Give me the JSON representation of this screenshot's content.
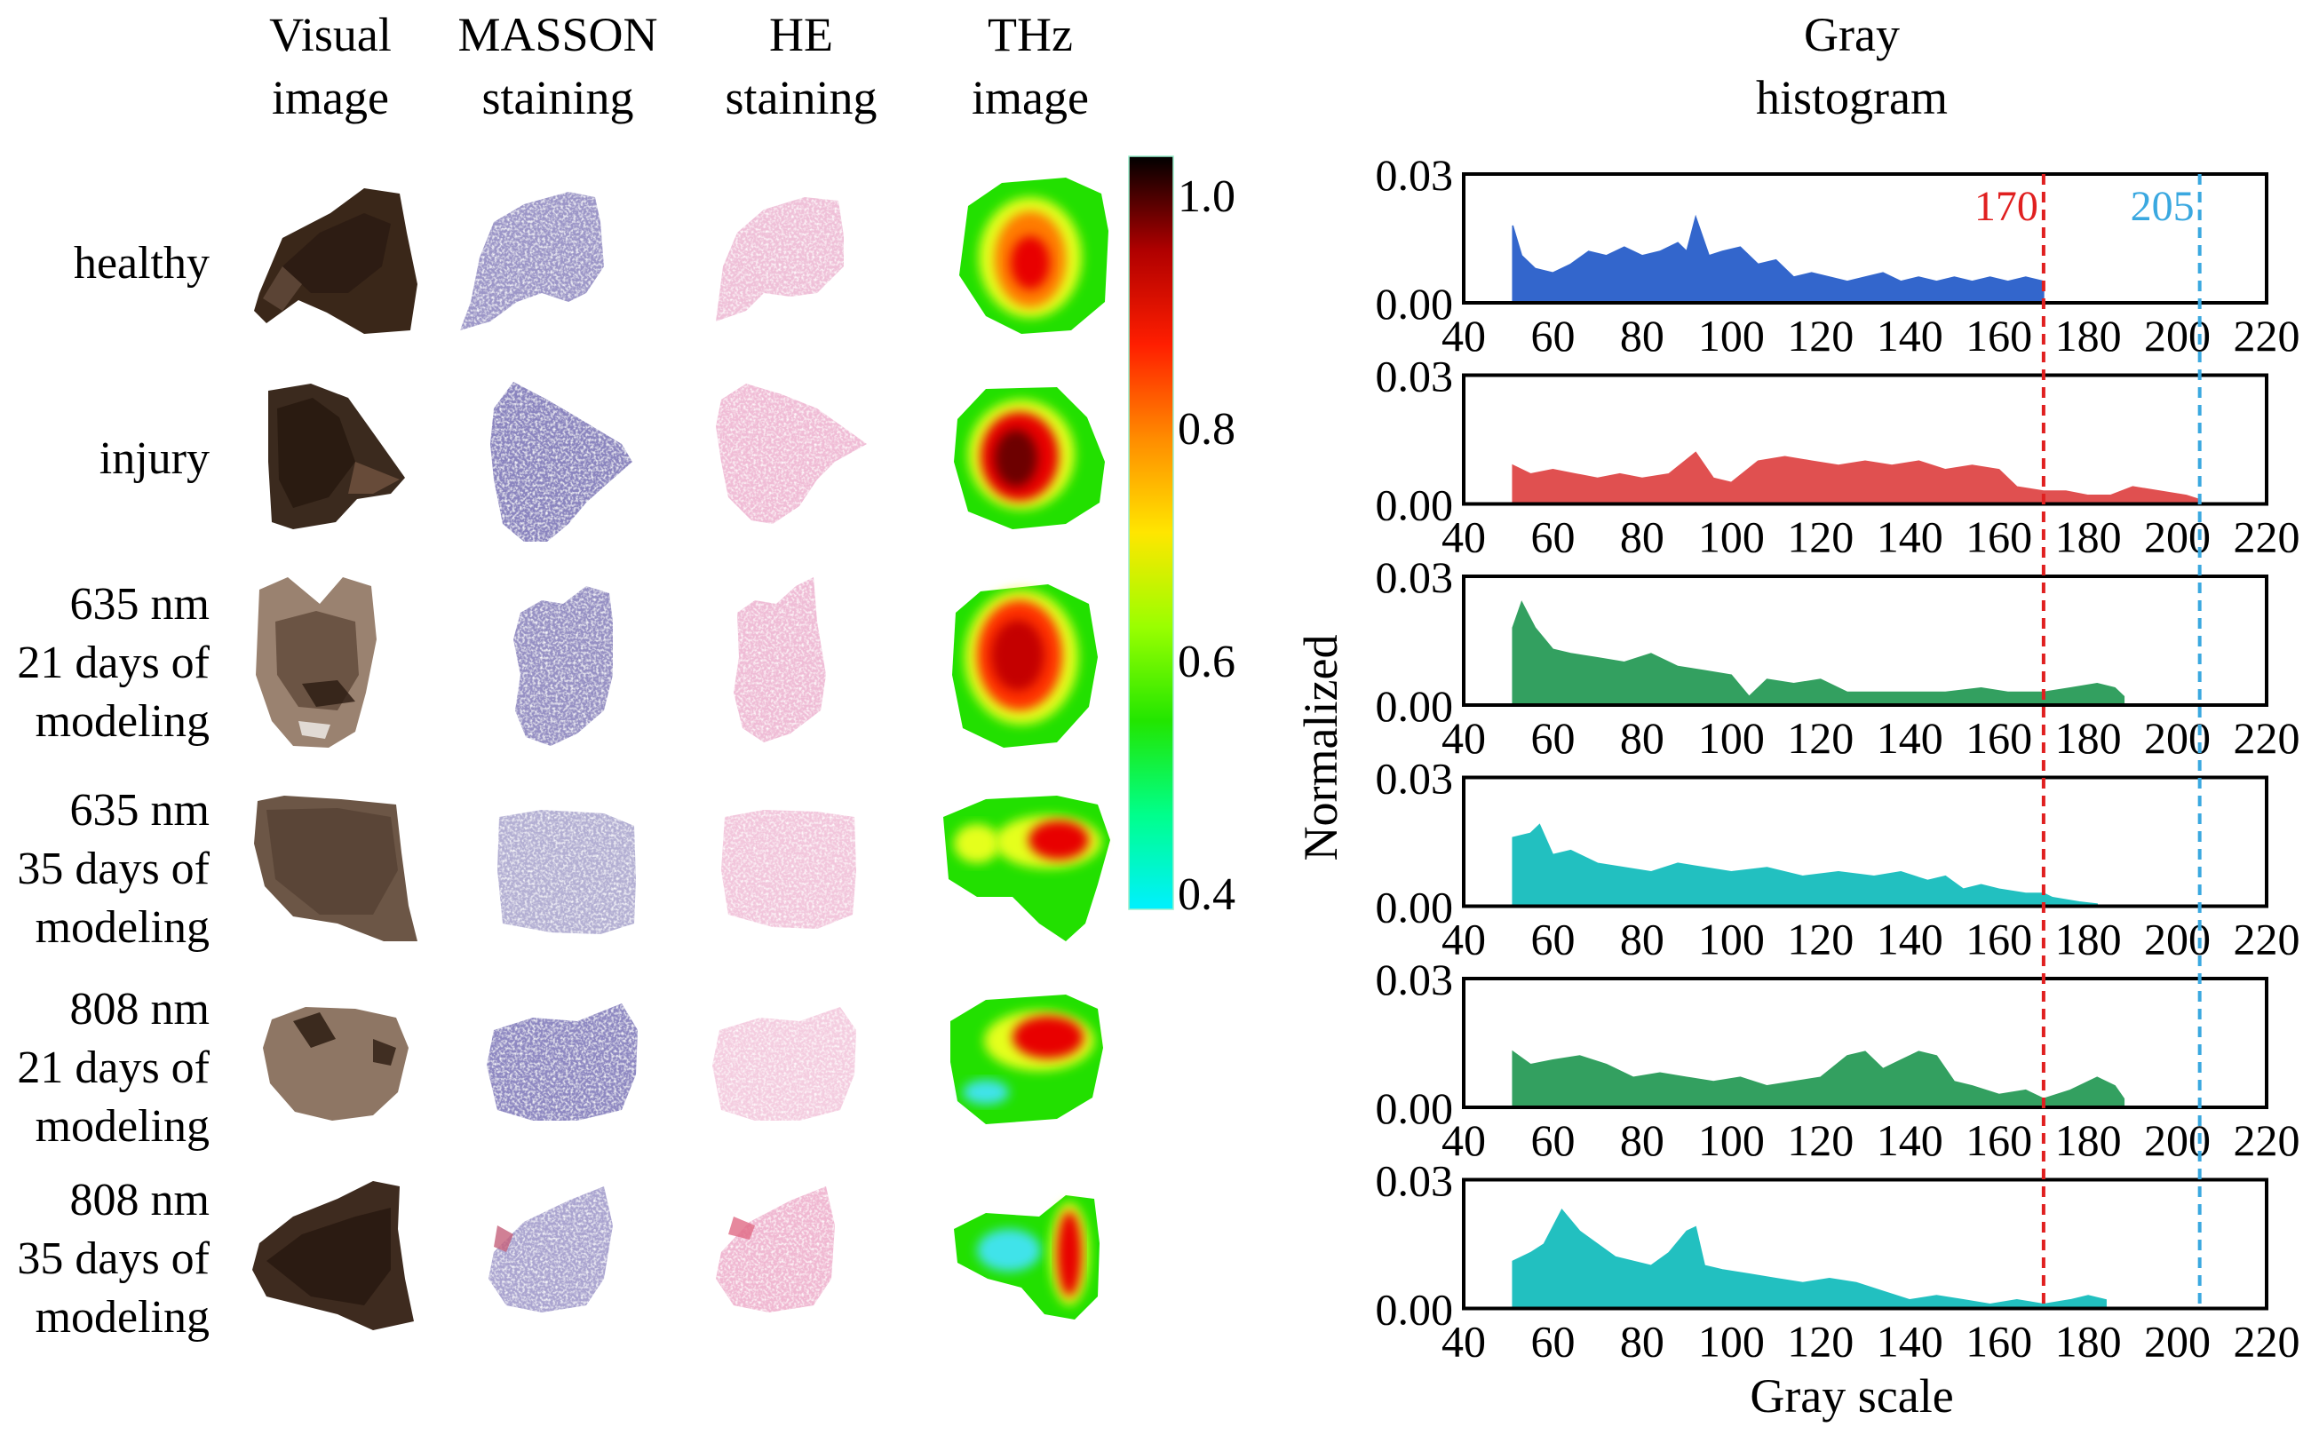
{
  "column_headers": [
    {
      "line1": "Visual",
      "line2": "image"
    },
    {
      "line1": "MASSON",
      "line2": "staining"
    },
    {
      "line1": "HE",
      "line2": "staining"
    },
    {
      "line1": "THz",
      "line2": "image"
    }
  ],
  "histogram_header": {
    "line1": "Gray",
    "line2": "histogram"
  },
  "row_labels": [
    {
      "lines": [
        "healthy"
      ]
    },
    {
      "lines": [
        "injury"
      ]
    },
    {
      "lines": [
        "635 nm",
        "21 days of",
        "modeling"
      ]
    },
    {
      "lines": [
        "635 nm",
        "35 days of",
        "modeling"
      ]
    },
    {
      "lines": [
        "808 nm",
        "21 days of",
        "modeling"
      ]
    },
    {
      "lines": [
        "808 nm",
        "35 days of",
        "modeling"
      ]
    }
  ],
  "colorbar": {
    "ticks": [
      "1.0",
      "0.8",
      "0.6",
      "0.4"
    ],
    "stops": [
      "#000000",
      "#b00000",
      "#ff1e00",
      "#ff8c00",
      "#ffe600",
      "#9aff00",
      "#22e600",
      "#00ff8c",
      "#00f0ff"
    ]
  },
  "colors": {
    "tissue_visual": "#3b2a1e",
    "masson": "#8d86c0",
    "he": "#ecb6d2",
    "thz_outer": "#22e000",
    "thz_cyan": "#3fe3ea",
    "thz_yellow": "#e5ff1f",
    "thz_red": "#e80000",
    "thz_dark": "#6d0000"
  },
  "chart_data": {
    "type": "area",
    "y_axis_title": "Normalized",
    "x_axis_title": "Gray scale",
    "xlim": [
      40,
      220
    ],
    "ylim": [
      0,
      0.03
    ],
    "x_ticks": [
      "40",
      "60",
      "80",
      "100",
      "120",
      "140",
      "160",
      "180",
      "200",
      "220"
    ],
    "y_ticks": [
      "0.00",
      "0.03"
    ],
    "reference_lines": [
      {
        "value": 170,
        "label": "170",
        "color": "#e02020"
      },
      {
        "value": 205,
        "label": "205",
        "color": "#3aa8e0"
      }
    ],
    "series": [
      {
        "name": "healthy",
        "color": "#3366cc",
        "points": [
          [
            51,
            0
          ],
          [
            51,
            0.018
          ],
          [
            53,
            0.011
          ],
          [
            56,
            0.008
          ],
          [
            60,
            0.007
          ],
          [
            64,
            0.009
          ],
          [
            68,
            0.012
          ],
          [
            72,
            0.011
          ],
          [
            76,
            0.013
          ],
          [
            80,
            0.011
          ],
          [
            84,
            0.012
          ],
          [
            88,
            0.014
          ],
          [
            90,
            0.012
          ],
          [
            92,
            0.02
          ],
          [
            95,
            0.011
          ],
          [
            98,
            0.012
          ],
          [
            102,
            0.013
          ],
          [
            106,
            0.009
          ],
          [
            110,
            0.01
          ],
          [
            114,
            0.006
          ],
          [
            118,
            0.007
          ],
          [
            122,
            0.006
          ],
          [
            126,
            0.005
          ],
          [
            130,
            0.006
          ],
          [
            134,
            0.007
          ],
          [
            138,
            0.005
          ],
          [
            142,
            0.006
          ],
          [
            146,
            0.005
          ],
          [
            150,
            0.006
          ],
          [
            154,
            0.005
          ],
          [
            158,
            0.006
          ],
          [
            162,
            0.005
          ],
          [
            166,
            0.006
          ],
          [
            170,
            0.005
          ],
          [
            170,
            0
          ]
        ]
      },
      {
        "name": "injury",
        "color": "#e05050",
        "points": [
          [
            51,
            0
          ],
          [
            51,
            0.009
          ],
          [
            55,
            0.007
          ],
          [
            60,
            0.008
          ],
          [
            65,
            0.007
          ],
          [
            70,
            0.006
          ],
          [
            75,
            0.007
          ],
          [
            80,
            0.006
          ],
          [
            86,
            0.007
          ],
          [
            92,
            0.012
          ],
          [
            96,
            0.006
          ],
          [
            100,
            0.005
          ],
          [
            106,
            0.01
          ],
          [
            112,
            0.011
          ],
          [
            118,
            0.01
          ],
          [
            124,
            0.009
          ],
          [
            130,
            0.01
          ],
          [
            136,
            0.009
          ],
          [
            142,
            0.01
          ],
          [
            148,
            0.008
          ],
          [
            154,
            0.009
          ],
          [
            160,
            0.008
          ],
          [
            164,
            0.004
          ],
          [
            170,
            0.003
          ],
          [
            175,
            0.003
          ],
          [
            180,
            0.002
          ],
          [
            185,
            0.002
          ],
          [
            190,
            0.004
          ],
          [
            196,
            0.003
          ],
          [
            202,
            0.002
          ],
          [
            205,
            0.001
          ],
          [
            205,
            0
          ]
        ]
      },
      {
        "name": "635 nm 21 days of modeling",
        "color": "#33a060",
        "points": [
          [
            51,
            0
          ],
          [
            51,
            0.018
          ],
          [
            53,
            0.024
          ],
          [
            56,
            0.018
          ],
          [
            60,
            0.013
          ],
          [
            64,
            0.012
          ],
          [
            70,
            0.011
          ],
          [
            76,
            0.01
          ],
          [
            82,
            0.012
          ],
          [
            88,
            0.009
          ],
          [
            94,
            0.008
          ],
          [
            100,
            0.007
          ],
          [
            104,
            0.002
          ],
          [
            108,
            0.006
          ],
          [
            114,
            0.005
          ],
          [
            120,
            0.006
          ],
          [
            126,
            0.003
          ],
          [
            132,
            0.003
          ],
          [
            140,
            0.003
          ],
          [
            148,
            0.003
          ],
          [
            156,
            0.004
          ],
          [
            162,
            0.003
          ],
          [
            170,
            0.003
          ],
          [
            176,
            0.004
          ],
          [
            182,
            0.005
          ],
          [
            186,
            0.004
          ],
          [
            188,
            0.002
          ],
          [
            188,
            0
          ]
        ]
      },
      {
        "name": "635 nm 35 days of modeling",
        "color": "#22c0c0",
        "points": [
          [
            51,
            0
          ],
          [
            51,
            0.016
          ],
          [
            55,
            0.017
          ],
          [
            57,
            0.019
          ],
          [
            60,
            0.012
          ],
          [
            64,
            0.013
          ],
          [
            70,
            0.01
          ],
          [
            76,
            0.009
          ],
          [
            82,
            0.008
          ],
          [
            88,
            0.01
          ],
          [
            94,
            0.009
          ],
          [
            100,
            0.008
          ],
          [
            108,
            0.009
          ],
          [
            116,
            0.007
          ],
          [
            124,
            0.008
          ],
          [
            132,
            0.007
          ],
          [
            138,
            0.008
          ],
          [
            144,
            0.006
          ],
          [
            148,
            0.007
          ],
          [
            152,
            0.004
          ],
          [
            156,
            0.005
          ],
          [
            160,
            0.004
          ],
          [
            166,
            0.003
          ],
          [
            170,
            0.003
          ],
          [
            172,
            0.002
          ],
          [
            178,
            0.001
          ],
          [
            182,
            0.0005
          ],
          [
            182,
            0
          ]
        ]
      },
      {
        "name": "808 nm 21 days of modeling",
        "color": "#33a060",
        "points": [
          [
            51,
            0
          ],
          [
            51,
            0.013
          ],
          [
            55,
            0.01
          ],
          [
            60,
            0.011
          ],
          [
            66,
            0.012
          ],
          [
            72,
            0.01
          ],
          [
            78,
            0.007
          ],
          [
            84,
            0.008
          ],
          [
            90,
            0.007
          ],
          [
            96,
            0.006
          ],
          [
            102,
            0.007
          ],
          [
            108,
            0.005
          ],
          [
            114,
            0.006
          ],
          [
            120,
            0.007
          ],
          [
            126,
            0.012
          ],
          [
            130,
            0.013
          ],
          [
            134,
            0.009
          ],
          [
            138,
            0.011
          ],
          [
            142,
            0.013
          ],
          [
            146,
            0.012
          ],
          [
            150,
            0.006
          ],
          [
            154,
            0.005
          ],
          [
            160,
            0.003
          ],
          [
            166,
            0.004
          ],
          [
            170,
            0.002
          ],
          [
            176,
            0.004
          ],
          [
            182,
            0.007
          ],
          [
            186,
            0.005
          ],
          [
            188,
            0.002
          ],
          [
            188,
            0
          ]
        ]
      },
      {
        "name": "808 nm 35 days of modeling",
        "color": "#22c0c0",
        "points": [
          [
            51,
            0
          ],
          [
            51,
            0.011
          ],
          [
            55,
            0.013
          ],
          [
            58,
            0.015
          ],
          [
            62,
            0.023
          ],
          [
            66,
            0.018
          ],
          [
            70,
            0.015
          ],
          [
            74,
            0.012
          ],
          [
            78,
            0.011
          ],
          [
            82,
            0.01
          ],
          [
            86,
            0.013
          ],
          [
            90,
            0.018
          ],
          [
            92,
            0.019
          ],
          [
            94,
            0.01
          ],
          [
            98,
            0.009
          ],
          [
            104,
            0.008
          ],
          [
            110,
            0.007
          ],
          [
            116,
            0.006
          ],
          [
            122,
            0.007
          ],
          [
            128,
            0.006
          ],
          [
            134,
            0.004
          ],
          [
            140,
            0.002
          ],
          [
            146,
            0.003
          ],
          [
            152,
            0.002
          ],
          [
            158,
            0.001
          ],
          [
            164,
            0.002
          ],
          [
            170,
            0.001
          ],
          [
            176,
            0.002
          ],
          [
            180,
            0.003
          ],
          [
            184,
            0.002
          ],
          [
            184,
            0
          ]
        ]
      }
    ]
  }
}
